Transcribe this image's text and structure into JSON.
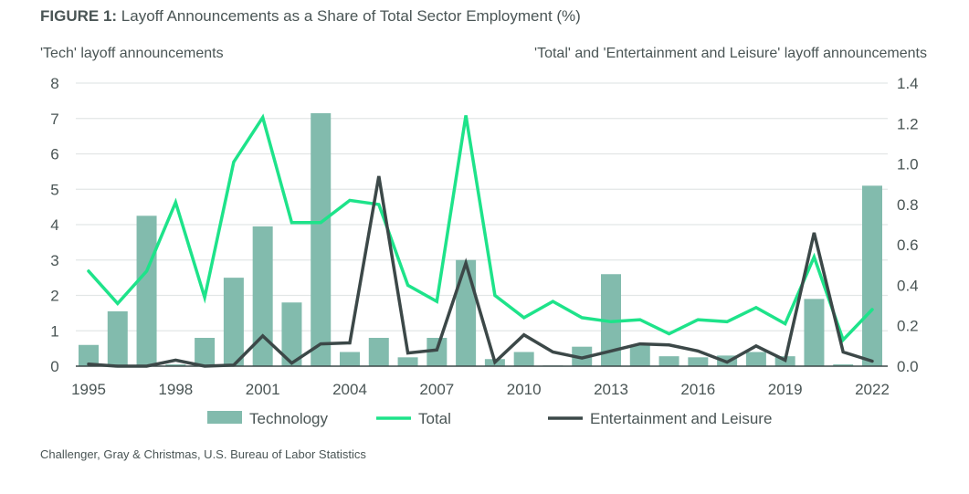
{
  "chart_data": {
    "type": "bar+line",
    "title_prefix": "FIGURE 1:",
    "title": "Layoff Announcements as a Share of Total Sector Employment (%)",
    "ylabel_left": "'Tech' layoff announcements",
    "ylabel_right": "'Total' and 'Entertainment and Leisure' layoff announcements",
    "ylim_left": [
      0,
      8
    ],
    "yticks_left": [
      "0",
      "1",
      "2",
      "3",
      "4",
      "5",
      "6",
      "7",
      "8"
    ],
    "ylim_right": [
      0,
      1.4
    ],
    "yticks_right": [
      "0.0",
      "0.2",
      "0.4",
      "0.6",
      "0.8",
      "1.0",
      "1.2",
      "1.4"
    ],
    "x": [
      1995,
      1996,
      1997,
      1998,
      1999,
      2000,
      2001,
      2002,
      2003,
      2004,
      2005,
      2006,
      2007,
      2008,
      2009,
      2010,
      2011,
      2012,
      2013,
      2014,
      2015,
      2016,
      2017,
      2018,
      2019,
      2020,
      2021,
      2022
    ],
    "xticks": [
      "1995",
      "1998",
      "2001",
      "2004",
      "2007",
      "2010",
      "2013",
      "2016",
      "2019",
      "2022"
    ],
    "grid": true,
    "legend_position": "bottom",
    "series": [
      {
        "name": "Technology",
        "type": "bar",
        "axis": "left",
        "color": "#82bbad",
        "values": [
          0.6,
          1.55,
          4.25,
          0.05,
          0.8,
          2.5,
          3.95,
          1.8,
          7.15,
          0.4,
          0.8,
          0.25,
          0.8,
          3.0,
          0.2,
          0.4,
          0.02,
          0.55,
          2.6,
          0.6,
          0.28,
          0.25,
          0.3,
          0.4,
          0.28,
          1.9,
          0.05,
          5.1
        ]
      },
      {
        "name": "Total",
        "type": "line",
        "axis": "right",
        "color": "#1ee38a",
        "values": [
          0.47,
          0.31,
          0.47,
          0.81,
          0.34,
          1.01,
          1.23,
          0.71,
          0.71,
          0.82,
          0.8,
          0.4,
          0.32,
          1.24,
          0.35,
          0.24,
          0.32,
          0.24,
          0.22,
          0.23,
          0.16,
          0.23,
          0.22,
          0.29,
          0.21,
          0.54,
          0.13,
          0.28
        ]
      },
      {
        "name": "Entertainment and Leisure",
        "type": "line",
        "axis": "right",
        "color": "#3c4848",
        "values": [
          0.01,
          0.0,
          0.0,
          0.03,
          0.0,
          0.005,
          0.15,
          0.015,
          0.11,
          0.115,
          0.94,
          0.065,
          0.08,
          0.51,
          0.02,
          0.155,
          0.07,
          0.04,
          0.075,
          0.11,
          0.105,
          0.075,
          0.02,
          0.1,
          0.03,
          0.66,
          0.07,
          0.025
        ]
      }
    ]
  },
  "source": "Challenger, Gray & Christmas, U.S. Bureau of Labor Statistics"
}
